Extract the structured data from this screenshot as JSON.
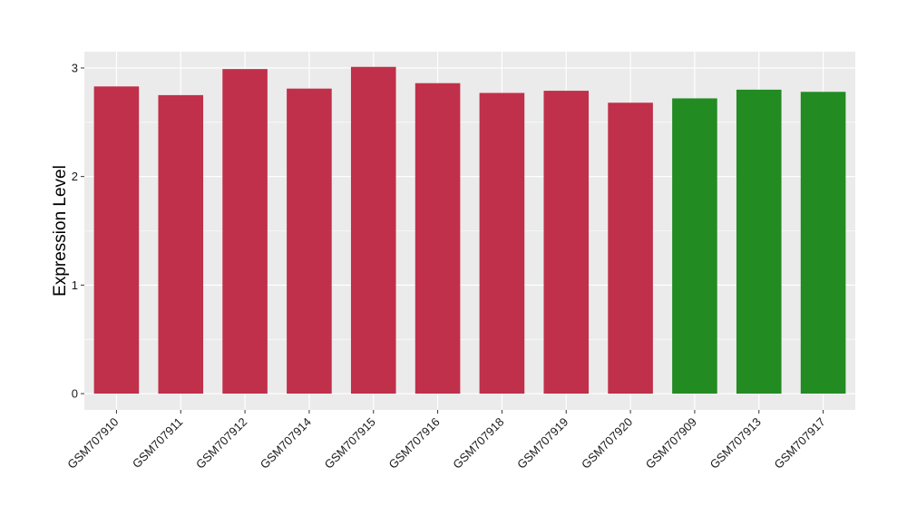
{
  "chart_data": {
    "type": "bar",
    "title": "",
    "xlabel": "",
    "ylabel": "Expression Level",
    "ylim": [
      -0.15,
      3.15
    ],
    "yticks": [
      0,
      1,
      2,
      3
    ],
    "grid": true,
    "legend": "none",
    "categories": [
      "GSM707910",
      "GSM707911",
      "GSM707912",
      "GSM707914",
      "GSM707915",
      "GSM707916",
      "GSM707918",
      "GSM707919",
      "GSM707920",
      "GSM707909",
      "GSM707913",
      "GSM707917"
    ],
    "values": [
      2.83,
      2.75,
      2.99,
      2.81,
      3.01,
      2.86,
      2.77,
      2.79,
      2.68,
      2.72,
      2.8,
      2.78
    ],
    "groups": [
      0,
      0,
      0,
      0,
      0,
      0,
      0,
      0,
      0,
      1,
      1,
      1
    ],
    "group_colors": [
      "#C0304A",
      "#228B22"
    ],
    "panel_background": "#EBEBEB",
    "grid_color": "#FFFFFF"
  }
}
